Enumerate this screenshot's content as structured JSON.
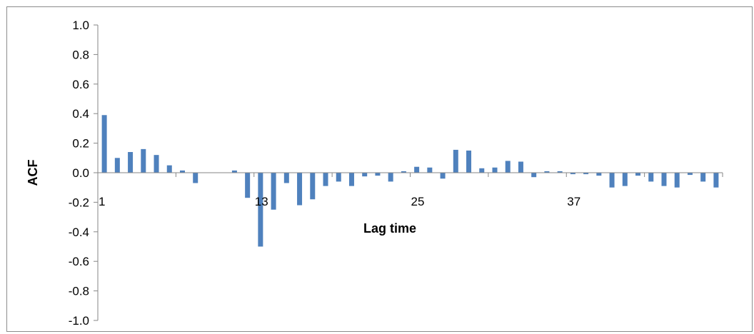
{
  "chart_data": {
    "type": "bar",
    "title": "",
    "xlabel": "Lag time",
    "ylabel": "ACF",
    "ylim": [
      -1.0,
      1.0
    ],
    "yticks": [
      "1.0",
      "0.8",
      "0.6",
      "0.4",
      "0.2",
      "0.0",
      "-0.2",
      "-0.4",
      "-0.6",
      "-0.8",
      "-1.0"
    ],
    "xtick_labels": [
      {
        "lag": 1,
        "label": "1"
      },
      {
        "lag": 13,
        "label": "13"
      },
      {
        "lag": 25,
        "label": "25"
      },
      {
        "lag": 37,
        "label": "37"
      }
    ],
    "grid": false,
    "legend": "none",
    "bar_color": "#4f81bd",
    "x": [
      1,
      2,
      3,
      4,
      5,
      6,
      7,
      8,
      9,
      10,
      11,
      12,
      13,
      14,
      15,
      16,
      17,
      18,
      19,
      20,
      21,
      22,
      23,
      24,
      25,
      26,
      27,
      28,
      29,
      30,
      31,
      32,
      33,
      34,
      35,
      36,
      37,
      38,
      39,
      40,
      41,
      42,
      43,
      44,
      45,
      46,
      47,
      48
    ],
    "values": [
      0.39,
      0.1,
      0.14,
      0.16,
      0.12,
      0.05,
      0.015,
      -0.07,
      0.0,
      0.0,
      0.015,
      -0.17,
      -0.5,
      -0.25,
      -0.07,
      -0.22,
      -0.18,
      -0.09,
      -0.06,
      -0.09,
      -0.025,
      -0.02,
      -0.06,
      0.01,
      0.04,
      0.035,
      -0.04,
      0.155,
      0.15,
      0.03,
      0.035,
      0.08,
      0.075,
      -0.03,
      0.01,
      0.01,
      -0.01,
      -0.01,
      -0.02,
      -0.1,
      -0.09,
      -0.02,
      -0.06,
      -0.09,
      -0.1,
      -0.015,
      -0.06,
      -0.1
    ]
  }
}
